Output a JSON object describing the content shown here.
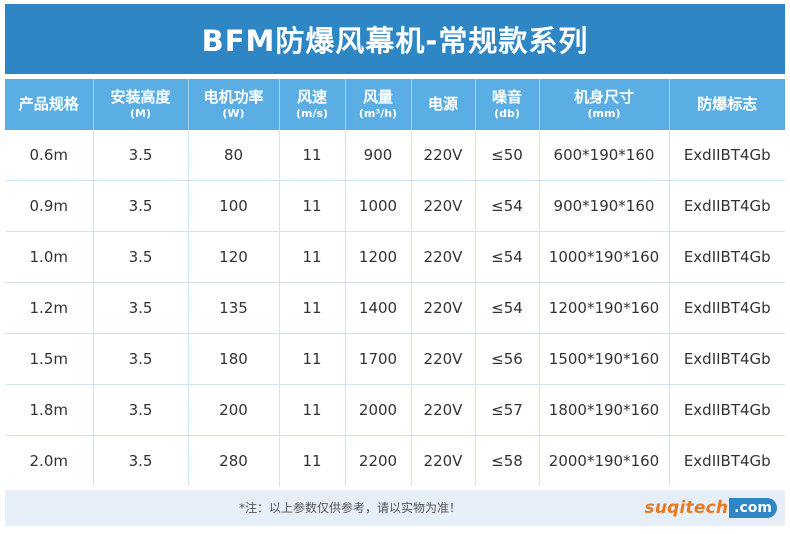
{
  "title": "BFM防爆风幕机-常规款系列",
  "colors": {
    "title_bar": "#2e86c4",
    "header_row": "#5aaee3",
    "footer_bar": "#e6eef7",
    "watermark_orange": "#e77a1e",
    "watermark_blue": "#2e86c4"
  },
  "table": {
    "headers": [
      {
        "label": "产品规格",
        "unit": ""
      },
      {
        "label": "安装高度",
        "unit": "(M)"
      },
      {
        "label": "电机功率",
        "unit": "(W)"
      },
      {
        "label": "风速",
        "unit": "(m/s)"
      },
      {
        "label": "风量",
        "unit": "(m³/h)"
      },
      {
        "label": "电源",
        "unit": ""
      },
      {
        "label": "噪音",
        "unit": "(db)"
      },
      {
        "label": "机身尺寸",
        "unit": "(mm)"
      },
      {
        "label": "防爆标志",
        "unit": ""
      }
    ],
    "rows": [
      [
        "0.6m",
        "3.5",
        "80",
        "11",
        "900",
        "220V",
        "≤50",
        "600*190*160",
        "ExdIIBT4Gb"
      ],
      [
        "0.9m",
        "3.5",
        "100",
        "11",
        "1000",
        "220V",
        "≤54",
        "900*190*160",
        "ExdIIBT4Gb"
      ],
      [
        "1.0m",
        "3.5",
        "120",
        "11",
        "1200",
        "220V",
        "≤54",
        "1000*190*160",
        "ExdIIBT4Gb"
      ],
      [
        "1.2m",
        "3.5",
        "135",
        "11",
        "1400",
        "220V",
        "≤54",
        "1200*190*160",
        "ExdIIBT4Gb"
      ],
      [
        "1.5m",
        "3.5",
        "180",
        "11",
        "1700",
        "220V",
        "≤56",
        "1500*190*160",
        "ExdIIBT4Gb"
      ],
      [
        "1.8m",
        "3.5",
        "200",
        "11",
        "2000",
        "220V",
        "≤57",
        "1800*190*160",
        "ExdIIBT4Gb"
      ],
      [
        "2.0m",
        "3.5",
        "280",
        "11",
        "2200",
        "220V",
        "≤58",
        "2000*190*160",
        "ExdIIBT4Gb"
      ]
    ]
  },
  "footer": {
    "note": "*注：以上参数仅供参考，请以实物为准！"
  },
  "watermark": {
    "main": "suqitech",
    "domain": ".com"
  }
}
